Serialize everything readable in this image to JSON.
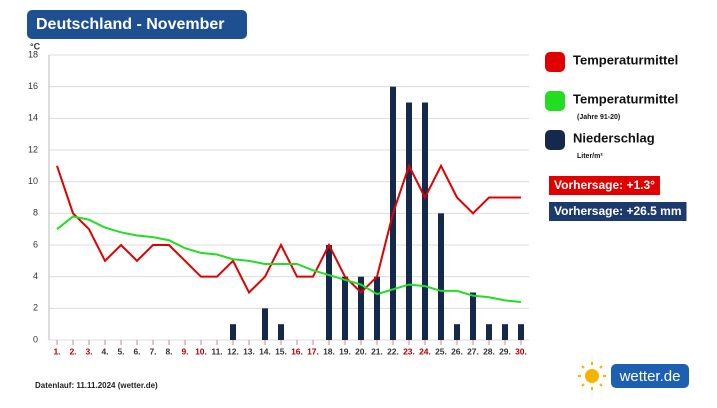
{
  "chart_data": {
    "type": "combo",
    "title": "Deutschland - November",
    "y_label": "°C",
    "footer": "Datenlauf: 11.11.2024 (wetter.de)",
    "logo": "wetter.de",
    "categories": [
      "1.",
      "2.",
      "3.",
      "4.",
      "5.",
      "6.",
      "7.",
      "8.",
      "9.",
      "10.",
      "11.",
      "12.",
      "13.",
      "14.",
      "15.",
      "16.",
      "17.",
      "18.",
      "19.",
      "20.",
      "21.",
      "22.",
      "23.",
      "24.",
      "25.",
      "26.",
      "27.",
      "28.",
      "29.",
      "30."
    ],
    "category_colors": [
      "#b00000",
      "#b00000",
      "#b00000",
      "#333333",
      "#333333",
      "#333333",
      "#333333",
      "#333333",
      "#b00000",
      "#b00000",
      "#333333",
      "#333333",
      "#333333",
      "#333333",
      "#333333",
      "#b00000",
      "#b00000",
      "#333333",
      "#333333",
      "#333333",
      "#333333",
      "#333333",
      "#b00000",
      "#b00000",
      "#333333",
      "#333333",
      "#333333",
      "#333333",
      "#333333",
      "#b00000"
    ],
    "ylim": [
      0,
      18
    ],
    "yticks": [
      0,
      2,
      4,
      6,
      8,
      10,
      12,
      14,
      16,
      18
    ],
    "grid": true,
    "series": [
      {
        "name": "Niederschlag",
        "note": "Liter/m²",
        "type": "bar",
        "color": "#15294d",
        "values": [
          0,
          0,
          0,
          0,
          0,
          0,
          0,
          0,
          0,
          0,
          0,
          1,
          0,
          2,
          1,
          0,
          0,
          6,
          4,
          4,
          4,
          16,
          15,
          15,
          8,
          1,
          3,
          1,
          1,
          1
        ]
      },
      {
        "name": "Temperaturmittel",
        "type": "line",
        "color": "#e00000",
        "values": [
          11,
          8,
          7,
          5,
          6,
          5,
          6,
          6,
          5,
          4,
          4,
          5,
          3,
          4,
          6,
          4,
          4,
          6,
          4,
          3,
          4,
          8,
          11,
          9,
          11,
          9,
          8,
          9,
          9,
          9
        ]
      },
      {
        "name": "Temperaturmittel",
        "note": "(Jahre 91-20)",
        "type": "line",
        "color": "#22dd22",
        "values": [
          7,
          7.8,
          7.6,
          7.1,
          6.8,
          6.6,
          6.5,
          6.3,
          5.8,
          5.5,
          5.4,
          5.1,
          5,
          4.8,
          4.8,
          4.8,
          4.4,
          4.1,
          3.8,
          3.5,
          2.9,
          3.2,
          3.5,
          3.4,
          3.1,
          3.1,
          2.8,
          2.7,
          2.5,
          2.4
        ]
      }
    ],
    "legend_order": [
      1,
      2,
      0
    ],
    "annotations": [
      {
        "text": "Vorhersage: +1.3°",
        "color": "#e00000"
      },
      {
        "text": "Vorhersage: +26.5 mm",
        "color": "#1d3a6e"
      }
    ]
  }
}
